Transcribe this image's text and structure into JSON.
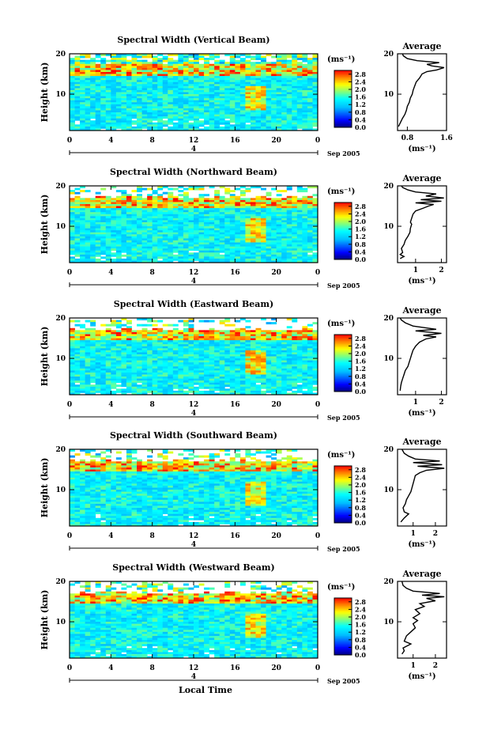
{
  "figure": {
    "x_axis_label": "Local Time",
    "date_label": "Sep 2005",
    "day_marker": "4",
    "main_y_label": "Height (km)",
    "colorbar_unit": "(ms⁻¹)",
    "avg_title": "Average",
    "avg_xlabel": "(ms⁻¹)"
  },
  "chart_data": [
    {
      "type": "heatmap",
      "title": "Spectral Width (Vertical Beam)",
      "xlabel": "Local Time",
      "ylabel": "Height (km)",
      "x_ticks": [
        "0",
        "4",
        "8",
        "12",
        "16",
        "20",
        "0"
      ],
      "y_ticks": [
        "10",
        "20"
      ],
      "xlim": [
        0,
        24
      ],
      "ylim": [
        1,
        20
      ],
      "colorbar": {
        "label": "(ms⁻¹)",
        "ticks": [
          "0.0",
          "0.4",
          "0.8",
          "1.2",
          "1.6",
          "2.0",
          "2.4",
          "2.8"
        ],
        "range": [
          0,
          3.0
        ]
      },
      "average": {
        "title": "Average",
        "xlabel": "(ms⁻¹)",
        "x_ticks": [
          "0.8",
          "1.6"
        ],
        "xlim": [
          0.6,
          1.6
        ],
        "y_ticks": [
          "10",
          "20"
        ],
        "profile": [
          [
            0.62,
            2
          ],
          [
            0.66,
            3
          ],
          [
            0.7,
            4
          ],
          [
            0.75,
            5
          ],
          [
            0.78,
            6
          ],
          [
            0.8,
            7
          ],
          [
            0.84,
            8
          ],
          [
            0.86,
            9
          ],
          [
            0.9,
            10
          ],
          [
            0.92,
            11
          ],
          [
            0.95,
            12
          ],
          [
            0.98,
            13
          ],
          [
            1.05,
            14
          ],
          [
            1.1,
            15
          ],
          [
            1.2,
            15.6
          ],
          [
            1.4,
            16
          ],
          [
            1.55,
            16.6
          ],
          [
            1.3,
            17
          ],
          [
            1.2,
            17.4
          ],
          [
            1.45,
            17.8
          ],
          [
            1.0,
            18.3
          ],
          [
            0.8,
            18.8
          ],
          [
            0.72,
            19.5
          ],
          [
            0.7,
            20
          ]
        ]
      }
    },
    {
      "type": "heatmap",
      "title": "Spectral Width (Northward Beam)",
      "xlabel": "Local Time",
      "ylabel": "Height (km)",
      "x_ticks": [
        "0",
        "4",
        "8",
        "12",
        "16",
        "20",
        "0"
      ],
      "y_ticks": [
        "10",
        "20"
      ],
      "xlim": [
        0,
        24
      ],
      "ylim": [
        1,
        20
      ],
      "colorbar": {
        "label": "(ms⁻¹)",
        "ticks": [
          "0.0",
          "0.4",
          "0.8",
          "1.2",
          "1.6",
          "2.0",
          "2.4",
          "2.8"
        ],
        "range": [
          0,
          3.0
        ]
      },
      "average": {
        "title": "Average",
        "xlabel": "(ms⁻¹)",
        "x_ticks": [
          "1",
          "2"
        ],
        "xlim": [
          0.3,
          2.2
        ],
        "y_ticks": [
          "10",
          "20"
        ],
        "profile": [
          [
            0.4,
            2
          ],
          [
            0.55,
            2.5
          ],
          [
            0.4,
            3
          ],
          [
            0.5,
            3.5
          ],
          [
            0.45,
            4.5
          ],
          [
            0.55,
            5.5
          ],
          [
            0.6,
            6.5
          ],
          [
            0.7,
            7.5
          ],
          [
            0.78,
            8.5
          ],
          [
            0.8,
            9.5
          ],
          [
            0.85,
            10.5
          ],
          [
            0.8,
            11
          ],
          [
            0.85,
            12
          ],
          [
            0.9,
            13
          ],
          [
            1.0,
            13.8
          ],
          [
            1.3,
            14.5
          ],
          [
            1.5,
            15
          ],
          [
            1.7,
            15.4
          ],
          [
            1.0,
            15.8
          ],
          [
            2.0,
            16.2
          ],
          [
            1.2,
            16.6
          ],
          [
            2.1,
            17
          ],
          [
            1.4,
            17.5
          ],
          [
            1.8,
            18
          ],
          [
            1.0,
            18.5
          ],
          [
            0.7,
            19
          ],
          [
            0.5,
            19.6
          ],
          [
            0.45,
            20
          ]
        ]
      }
    },
    {
      "type": "heatmap",
      "title": "Spectral Width (Eastward Beam)",
      "xlabel": "Local Time",
      "ylabel": "Height (km)",
      "x_ticks": [
        "0",
        "4",
        "8",
        "12",
        "16",
        "20",
        "0"
      ],
      "y_ticks": [
        "10",
        "20"
      ],
      "xlim": [
        0,
        24
      ],
      "ylim": [
        1,
        20
      ],
      "colorbar": {
        "label": "(ms⁻¹)",
        "ticks": [
          "0.0",
          "0.4",
          "0.8",
          "1.2",
          "1.6",
          "2.0",
          "2.4",
          "2.8"
        ],
        "range": [
          0,
          3.0
        ]
      },
      "average": {
        "title": "Average",
        "xlabel": "(ms⁻¹)",
        "x_ticks": [
          "1",
          "2"
        ],
        "xlim": [
          0.3,
          2.2
        ],
        "y_ticks": [
          "10",
          "20"
        ],
        "profile": [
          [
            0.4,
            2
          ],
          [
            0.42,
            3
          ],
          [
            0.45,
            4
          ],
          [
            0.5,
            5
          ],
          [
            0.55,
            6
          ],
          [
            0.6,
            7
          ],
          [
            0.7,
            8
          ],
          [
            0.75,
            9
          ],
          [
            0.8,
            10
          ],
          [
            0.85,
            11
          ],
          [
            0.9,
            12
          ],
          [
            1.0,
            13
          ],
          [
            1.15,
            14
          ],
          [
            1.4,
            14.8
          ],
          [
            1.8,
            15.3
          ],
          [
            1.3,
            15.7
          ],
          [
            2.0,
            16.2
          ],
          [
            1.0,
            16.8
          ],
          [
            1.8,
            17.2
          ],
          [
            0.9,
            18
          ],
          [
            0.6,
            18.8
          ],
          [
            0.45,
            19.5
          ],
          [
            0.4,
            20
          ]
        ]
      }
    },
    {
      "type": "heatmap",
      "title": "Spectral Width (Southward Beam)",
      "xlabel": "Local Time",
      "ylabel": "Height (km)",
      "x_ticks": [
        "0",
        "4",
        "8",
        "12",
        "16",
        "20",
        "0"
      ],
      "y_ticks": [
        "10",
        "20"
      ],
      "xlim": [
        0,
        24
      ],
      "ylim": [
        1,
        20
      ],
      "colorbar": {
        "label": "(ms⁻¹)",
        "ticks": [
          "0.0",
          "0.4",
          "0.8",
          "1.2",
          "1.6",
          "2.0",
          "2.4",
          "2.8"
        ],
        "range": [
          0,
          3.0
        ]
      },
      "average": {
        "title": "Average",
        "xlabel": "(ms⁻¹)",
        "x_ticks": [
          "1",
          "2"
        ],
        "xlim": [
          0.3,
          2.5
        ],
        "y_ticks": [
          "10",
          "20"
        ],
        "profile": [
          [
            0.45,
            2
          ],
          [
            0.6,
            3
          ],
          [
            0.8,
            4
          ],
          [
            0.6,
            4.5
          ],
          [
            0.55,
            5.5
          ],
          [
            0.65,
            6.5
          ],
          [
            0.7,
            7.5
          ],
          [
            0.8,
            8.5
          ],
          [
            0.9,
            9.5
          ],
          [
            0.95,
            10.5
          ],
          [
            1.0,
            11.5
          ],
          [
            1.05,
            12.5
          ],
          [
            1.1,
            13.5
          ],
          [
            1.3,
            14.2
          ],
          [
            1.6,
            14.8
          ],
          [
            2.4,
            15.3
          ],
          [
            1.2,
            15.8
          ],
          [
            2.3,
            16.2
          ],
          [
            1.0,
            16.7
          ],
          [
            2.2,
            17.1
          ],
          [
            1.1,
            17.6
          ],
          [
            0.8,
            18.3
          ],
          [
            0.6,
            19
          ],
          [
            0.5,
            20
          ]
        ]
      }
    },
    {
      "type": "heatmap",
      "title": "Spectral Width (Westward Beam)",
      "xlabel": "Local Time",
      "ylabel": "Height (km)",
      "x_ticks": [
        "0",
        "4",
        "8",
        "12",
        "16",
        "20",
        "0"
      ],
      "y_ticks": [
        "10",
        "20"
      ],
      "xlim": [
        0,
        24
      ],
      "ylim": [
        1,
        20
      ],
      "colorbar": {
        "label": "(ms⁻¹)",
        "ticks": [
          "0.0",
          "0.4",
          "0.8",
          "1.2",
          "1.6",
          "2.0",
          "2.4",
          "2.8"
        ],
        "range": [
          0,
          3.0
        ]
      },
      "average": {
        "title": "Average",
        "xlabel": "(ms⁻¹)",
        "x_ticks": [
          "1",
          "2"
        ],
        "xlim": [
          0.3,
          2.5
        ],
        "y_ticks": [
          "10",
          "20"
        ],
        "profile": [
          [
            0.5,
            2
          ],
          [
            0.6,
            2.8
          ],
          [
            0.55,
            3.5
          ],
          [
            0.9,
            4.5
          ],
          [
            0.6,
            5.2
          ],
          [
            0.7,
            6.5
          ],
          [
            0.9,
            7.5
          ],
          [
            1.1,
            8.5
          ],
          [
            1.0,
            9.5
          ],
          [
            1.2,
            10.3
          ],
          [
            1.0,
            11
          ],
          [
            1.3,
            12
          ],
          [
            1.1,
            13
          ],
          [
            1.5,
            13.8
          ],
          [
            1.3,
            14.5
          ],
          [
            2.0,
            15.2
          ],
          [
            1.6,
            15.8
          ],
          [
            2.4,
            16.2
          ],
          [
            1.4,
            16.6
          ],
          [
            2.2,
            17
          ],
          [
            1.0,
            17.6
          ],
          [
            0.7,
            18.3
          ],
          [
            0.55,
            19
          ],
          [
            0.5,
            20
          ]
        ]
      }
    }
  ]
}
